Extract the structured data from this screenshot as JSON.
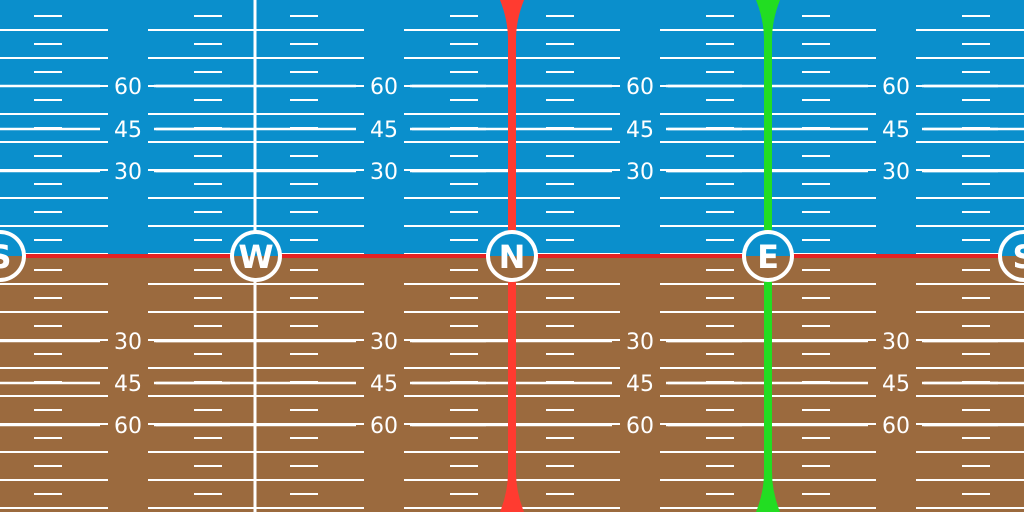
{
  "colors": {
    "sky": "#0a8fcc",
    "ground": "#9b6a3e",
    "tick": "#ffffff",
    "horizon": "#e42323",
    "meridian_red": "#ff3b30",
    "meridian_green": "#22dd22",
    "badge_fill": "#ffffff",
    "badge_text_sky": "#1384c6",
    "badge_text_ground": "#1384c6"
  },
  "pitch_labels": {
    "sky": [
      "60",
      "45",
      "30"
    ],
    "ground": [
      "30",
      "45",
      "60"
    ]
  },
  "pitch_values": {
    "sky": [
      60,
      45,
      30
    ],
    "ground": [
      30,
      45,
      60
    ]
  },
  "headings": [
    {
      "label": "S",
      "azimuth": 180
    },
    {
      "label": "W",
      "azimuth": 270
    },
    {
      "label": "N",
      "azimuth": 0
    },
    {
      "label": "E",
      "azimuth": 90
    },
    {
      "label": "S",
      "azimuth": 180
    }
  ],
  "meridians": [
    {
      "azimuth": 0,
      "color": "red"
    },
    {
      "azimuth": 90,
      "color": "green"
    }
  ]
}
